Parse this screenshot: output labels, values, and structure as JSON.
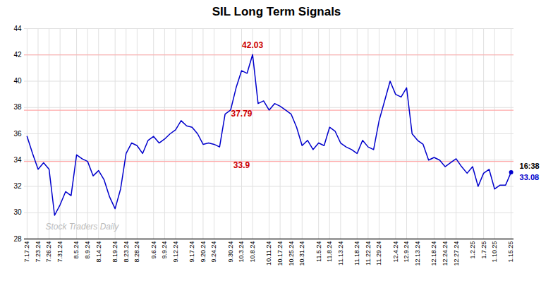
{
  "chart_data": {
    "type": "line",
    "title": "SIL Long Term Signals",
    "categories": [
      "7.17.24",
      null,
      "7.23.24",
      null,
      "7.26.24",
      null,
      "7.31.24",
      null,
      null,
      "8.5.24",
      null,
      "8.9.24",
      null,
      "8.14.24",
      null,
      null,
      "8.19.24",
      null,
      "8.23.24",
      null,
      "8.28.24",
      null,
      null,
      "9.6.24",
      null,
      "9.9.24",
      null,
      "9.12.24",
      null,
      null,
      "9.17.24",
      null,
      "9.20.24",
      null,
      "9.24.24",
      null,
      null,
      "9.30.24",
      null,
      "10.3.24",
      null,
      "10.8.24",
      null,
      null,
      "10.11.24",
      null,
      "10.17.24",
      null,
      "10.25.24",
      null,
      "10.31.24",
      null,
      null,
      "11.5.24",
      null,
      "11.8.24",
      null,
      "11.13.24",
      null,
      null,
      "11.18.24",
      null,
      "11.22.24",
      null,
      "11.29.24",
      null,
      null,
      "12.4.24",
      null,
      "12.9.24",
      null,
      "12.13.24",
      null,
      null,
      "12.18.24",
      null,
      "12.24.24",
      null,
      "12.27.24",
      null,
      null,
      "1.2.25",
      null,
      "1.7.25",
      null,
      "1.10.25",
      null,
      null,
      "1.15.25"
    ],
    "values": [
      35.8,
      34.5,
      33.3,
      33.8,
      33.3,
      29.8,
      30.6,
      31.6,
      31.3,
      34.4,
      34.1,
      33.9,
      32.8,
      33.2,
      32.5,
      31.2,
      30.3,
      31.8,
      34.5,
      35.3,
      35.1,
      34.5,
      35.5,
      35.8,
      35.3,
      35.6,
      36.0,
      36.3,
      37.0,
      36.6,
      36.5,
      36.0,
      35.2,
      35.3,
      35.2,
      35.0,
      37.5,
      37.8,
      39.5,
      40.8,
      40.6,
      42.03,
      38.3,
      38.5,
      37.8,
      38.3,
      38.1,
      37.8,
      37.5,
      36.5,
      35.1,
      35.5,
      34.8,
      35.3,
      35.1,
      36.5,
      36.2,
      35.3,
      35.0,
      34.8,
      34.5,
      35.5,
      35.0,
      34.8,
      37.0,
      38.5,
      40.0,
      39.0,
      38.8,
      39.5,
      36.0,
      35.5,
      35.2,
      34.0,
      34.2,
      34.0,
      33.5,
      33.8,
      34.1,
      33.5,
      33.0,
      33.5,
      32.0,
      33.0,
      33.3,
      31.8,
      32.1,
      32.1,
      33.08
    ],
    "color": "#0000cc",
    "ylim": [
      28,
      44
    ],
    "yticks": [
      28,
      30,
      32,
      34,
      36,
      38,
      40,
      42,
      44
    ],
    "grid": true,
    "hlines": [
      42.0,
      37.79,
      33.9
    ],
    "hline_color": "#ffaaaa",
    "annotations": [
      {
        "text": "42.03",
        "x": 41,
        "y": 42.55,
        "color": "#cc0000"
      },
      {
        "text": "37.79",
        "x": 39,
        "y": 37.3,
        "color": "#cc0000"
      },
      {
        "text": "33.9",
        "x": 39,
        "y": 33.4,
        "color": "#cc0000"
      }
    ],
    "last_price_labels": [
      {
        "text": "16:38",
        "color": "#000000"
      },
      {
        "text": "33.08",
        "color": "#0000cc"
      }
    ],
    "watermark": {
      "text": "Stock Traders Daily",
      "color": "#bbbbbb"
    }
  }
}
